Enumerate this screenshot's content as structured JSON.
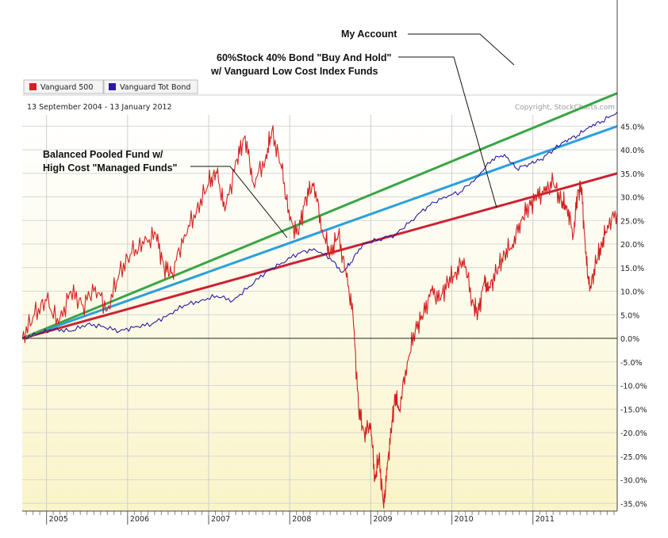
{
  "chart_data": {
    "type": "line",
    "date_range": "13 September 2004 - 13 January 2012",
    "copyright": "Copyright, StockCharts.com",
    "y_unit": "%",
    "ylim": [
      -36,
      52
    ],
    "y_ticks": [
      -35,
      -30,
      -25,
      -20,
      -15,
      -10,
      -5,
      0,
      5,
      10,
      15,
      20,
      25,
      30,
      35,
      40,
      45
    ],
    "y_tick_labels": [
      "-35.0%",
      "-30.0%",
      "-25.0%",
      "-20.0%",
      "-15.0%",
      "-10.0%",
      "-5.0%",
      "0.0%",
      "5.0%",
      "10.0%",
      "15.0%",
      "20.0%",
      "25.0%",
      "30.0%",
      "35.0%",
      "40.0%",
      "45.0%"
    ],
    "x_ticks": [
      "2005",
      "2006",
      "2007",
      "2008",
      "2009",
      "2010",
      "2011"
    ],
    "legend": [
      {
        "name": "Vanguard 500",
        "color": "#d42020"
      },
      {
        "name": "Vanguard Tot Bond",
        "color": "#2a1aa0"
      }
    ],
    "series": [
      {
        "name": "Vanguard 500",
        "color": "#d42020",
        "x": [
          2004.7,
          2004.85,
          2005.0,
          2005.15,
          2005.3,
          2005.45,
          2005.6,
          2005.75,
          2005.9,
          2006.05,
          2006.2,
          2006.35,
          2006.45,
          2006.55,
          2006.7,
          2006.85,
          2007.0,
          2007.1,
          2007.2,
          2007.35,
          2007.45,
          2007.55,
          2007.7,
          2007.78,
          2007.9,
          2008.0,
          2008.1,
          2008.2,
          2008.3,
          2008.4,
          2008.5,
          2008.6,
          2008.7,
          2008.78,
          2008.85,
          2008.92,
          2009.0,
          2009.05,
          2009.1,
          2009.16,
          2009.2,
          2009.25,
          2009.3,
          2009.35,
          2009.45,
          2009.55,
          2009.65,
          2009.75,
          2009.85,
          2009.95,
          2010.05,
          2010.15,
          2010.25,
          2010.32,
          2010.4,
          2010.45,
          2010.55,
          2010.65,
          2010.75,
          2010.85,
          2010.95,
          2011.05,
          2011.15,
          2011.25,
          2011.35,
          2011.42,
          2011.5,
          2011.55,
          2011.6,
          2011.65,
          2011.7,
          2011.78,
          2011.85,
          2011.92,
          2012.04
        ],
        "values": [
          0,
          5,
          8,
          3,
          10,
          7,
          11,
          6,
          14,
          18,
          20,
          22,
          15,
          14,
          22,
          27,
          33,
          35,
          27,
          38,
          43,
          33,
          38,
          44,
          36,
          25,
          22,
          30,
          33,
          23,
          18,
          22,
          13,
          5,
          -15,
          -20,
          -18,
          -30,
          -25,
          -36,
          -28,
          -20,
          -12,
          -15,
          -5,
          2,
          5,
          10,
          8,
          12,
          14,
          17,
          8,
          5,
          12,
          10,
          14,
          18,
          20,
          25,
          28,
          30,
          31,
          33,
          29,
          28,
          22,
          31,
          32,
          18,
          10,
          16,
          20,
          24,
          27
        ]
      },
      {
        "name": "Vanguard Tot Bond",
        "color": "#2a1aa0",
        "x": [
          2004.7,
          2004.9,
          2005.1,
          2005.3,
          2005.5,
          2005.7,
          2005.9,
          2006.1,
          2006.3,
          2006.5,
          2006.7,
          2006.9,
          2007.1,
          2007.3,
          2007.5,
          2007.7,
          2007.9,
          2008.1,
          2008.3,
          2008.5,
          2008.65,
          2008.75,
          2008.9,
          2009.1,
          2009.3,
          2009.5,
          2009.7,
          2009.9,
          2010.1,
          2010.3,
          2010.5,
          2010.65,
          2010.8,
          2010.95,
          2011.1,
          2011.25,
          2011.4,
          2011.55,
          2011.7,
          2011.85,
          2012.04
        ],
        "values": [
          0,
          1,
          2,
          1.5,
          3,
          2.5,
          1.5,
          2.5,
          3,
          5,
          7,
          8,
          9,
          8,
          11,
          14,
          16,
          18,
          19,
          17,
          14,
          16,
          20,
          21,
          22,
          25,
          28,
          30,
          31,
          34,
          38,
          39,
          36,
          37,
          38,
          40,
          42,
          43,
          45,
          46,
          48
        ]
      },
      {
        "name": "My Account",
        "color": "#3aa545",
        "x": [
          2004.7,
          2012.04
        ],
        "values": [
          0,
          52
        ]
      },
      {
        "name": "60%Stock 40% Bond \"Buy And Hold\" w/ Vanguard Low Cost Index Funds",
        "color": "#2aa0dd",
        "x": [
          2004.7,
          2012.04
        ],
        "values": [
          0,
          45
        ]
      },
      {
        "name": "Balanced Pooled Fund w/ High Cost \"Managed Funds\"",
        "color": "#cc2233",
        "x": [
          2004.7,
          2012.04
        ],
        "values": [
          0,
          35
        ]
      }
    ],
    "annotations": [
      {
        "lines": [
          "My Account"
        ],
        "points_to": "My Account"
      },
      {
        "lines": [
          "60%Stock 40% Bond \"Buy And Hold\"",
          "w/ Vanguard Low Cost Index Funds"
        ],
        "points_to": "60%Stock 40% Bond \"Buy And Hold\" w/ Vanguard Low Cost Index Funds"
      },
      {
        "lines": [
          "Balanced Pooled Fund w/",
          "High Cost \"Managed Funds\""
        ],
        "points_to": "Balanced Pooled Fund w/ High Cost \"Managed Funds\""
      }
    ]
  }
}
